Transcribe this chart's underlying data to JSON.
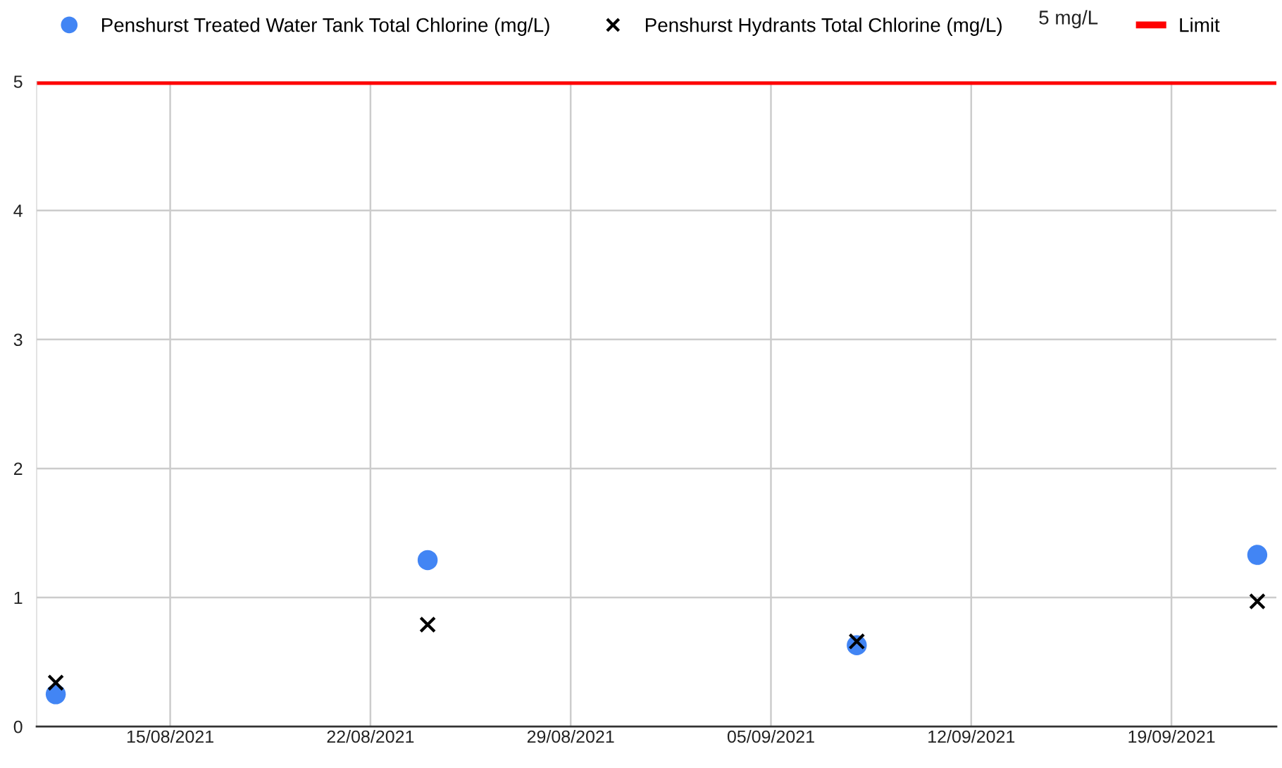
{
  "chart_data": {
    "type": "scatter",
    "x": [
      "2021-08-11",
      "2021-08-24",
      "2021-09-08",
      "2021-09-22"
    ],
    "series": [
      {
        "name": "Penshurst Treated Water Tank Total Chlorine (mg/L)",
        "color": "#4285f4",
        "marker": "circle",
        "values": [
          0.25,
          1.29,
          0.63,
          1.33
        ]
      },
      {
        "name": "Penshurst Hydrants Total Chlorine (mg/L)",
        "color": "#000000",
        "marker": "cross",
        "values": [
          0.34,
          0.79,
          0.66,
          0.97
        ]
      }
    ],
    "ref_lines": [
      {
        "axis": "y",
        "value": 5,
        "label": "Limit",
        "color": "#ff0000"
      }
    ],
    "annotations": [
      "5 mg/L"
    ],
    "xlim": [
      "2021-08-10T08:00",
      "2021-09-22T16:00"
    ],
    "xticks": [
      {
        "value": "2021-08-15",
        "label": "15/08/2021"
      },
      {
        "value": "2021-08-22",
        "label": "22/08/2021"
      },
      {
        "value": "2021-08-29",
        "label": "29/08/2021"
      },
      {
        "value": "2021-09-05",
        "label": "05/09/2021"
      },
      {
        "value": "2021-09-12",
        "label": "12/09/2021"
      },
      {
        "value": "2021-09-19",
        "label": "19/09/2021"
      }
    ],
    "ylim": [
      0,
      5
    ],
    "yticks": [
      0,
      1,
      2,
      3,
      4,
      5
    ],
    "grid": true,
    "legend": "top"
  }
}
